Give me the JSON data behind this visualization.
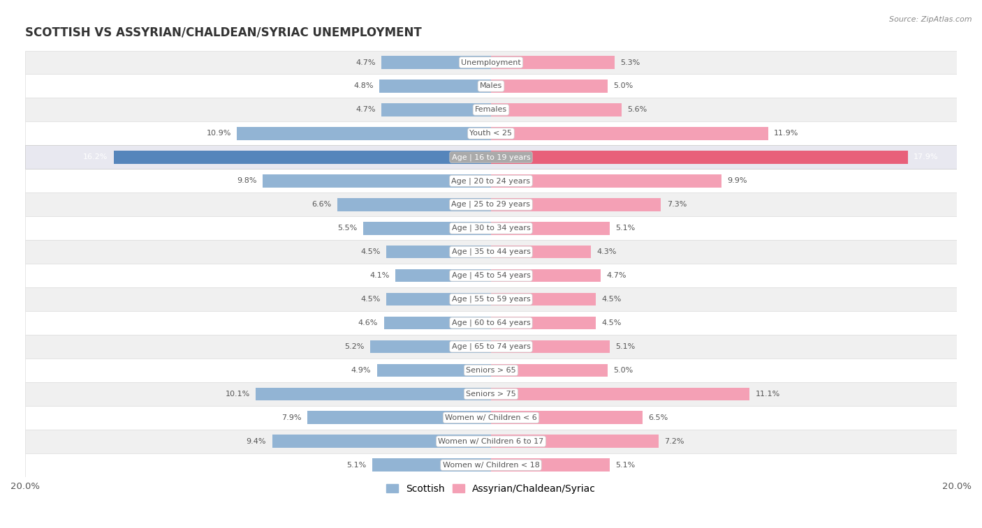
{
  "title": "SCOTTISH VS ASSYRIAN/CHALDEAN/SYRIAC UNEMPLOYMENT",
  "source": "Source: ZipAtlas.com",
  "categories": [
    "Unemployment",
    "Males",
    "Females",
    "Youth < 25",
    "Age | 16 to 19 years",
    "Age | 20 to 24 years",
    "Age | 25 to 29 years",
    "Age | 30 to 34 years",
    "Age | 35 to 44 years",
    "Age | 45 to 54 years",
    "Age | 55 to 59 years",
    "Age | 60 to 64 years",
    "Age | 65 to 74 years",
    "Seniors > 65",
    "Seniors > 75",
    "Women w/ Children < 6",
    "Women w/ Children 6 to 17",
    "Women w/ Children < 18"
  ],
  "scottish": [
    4.7,
    4.8,
    4.7,
    10.9,
    16.2,
    9.8,
    6.6,
    5.5,
    4.5,
    4.1,
    4.5,
    4.6,
    5.2,
    4.9,
    10.1,
    7.9,
    9.4,
    5.1
  ],
  "assyrian": [
    5.3,
    5.0,
    5.6,
    11.9,
    17.9,
    9.9,
    7.3,
    5.1,
    4.3,
    4.7,
    4.5,
    4.5,
    5.1,
    5.0,
    11.1,
    6.5,
    7.2,
    5.1
  ],
  "scottish_color": "#92b4d4",
  "assyrian_color": "#f4a0b5",
  "scottish_color_highlight": "#5585bb",
  "assyrian_color_highlight": "#e8607a",
  "background_color": "#ffffff",
  "row_color_light": "#ffffff",
  "row_color_dark": "#f0f0f0",
  "axis_max": 20.0,
  "legend_scottish": "Scottish",
  "legend_assyrian": "Assyrian/Chaldean/Syriac",
  "highlight_rows": [
    4
  ]
}
